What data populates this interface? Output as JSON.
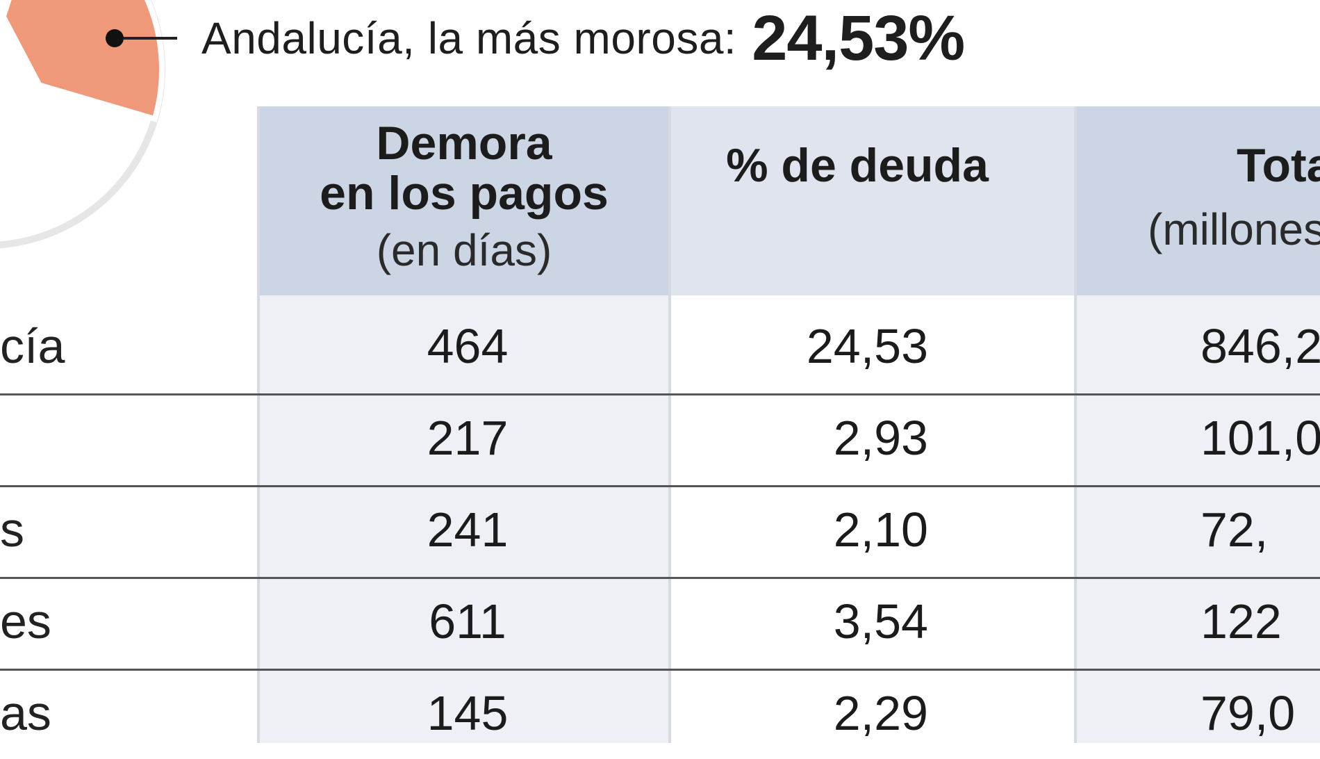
{
  "headline": {
    "lead": "Andalucía, la más morosa:",
    "value": "24,53%"
  },
  "pie": {
    "highlight_share": 24.53,
    "highlight_color": "#f0987a",
    "rest_color": "#ffffff",
    "outline_color": "#e6e6e6"
  },
  "chart_data": {
    "type": "table",
    "columns": [
      {
        "title": "Demora",
        "title2": "en los pagos",
        "subtitle": "(en días)"
      },
      {
        "title": "% de deuda",
        "title2": "",
        "subtitle": ""
      },
      {
        "title": "Tota",
        "title2": "",
        "subtitle": "(millones"
      }
    ],
    "rows": [
      {
        "label": "cía",
        "values": [
          "464",
          "24,53",
          "846,2"
        ]
      },
      {
        "label": "",
        "values": [
          "217",
          "2,93",
          "101,0"
        ]
      },
      {
        "label": "s",
        "values": [
          "241",
          "2,10",
          "72,"
        ]
      },
      {
        "label": "es",
        "values": [
          "611",
          "3,54",
          "122"
        ]
      },
      {
        "label": "as",
        "values": [
          "145",
          "2,29",
          "79,0"
        ]
      }
    ]
  },
  "colors": {
    "header_col1": "#ccd5e4",
    "header_col2": "#dfe4ef",
    "header_col3": "#ccd5e4",
    "body_col1": "#eef0f5",
    "body_col2": "#ffffff",
    "body_col3": "#eef0f5"
  }
}
